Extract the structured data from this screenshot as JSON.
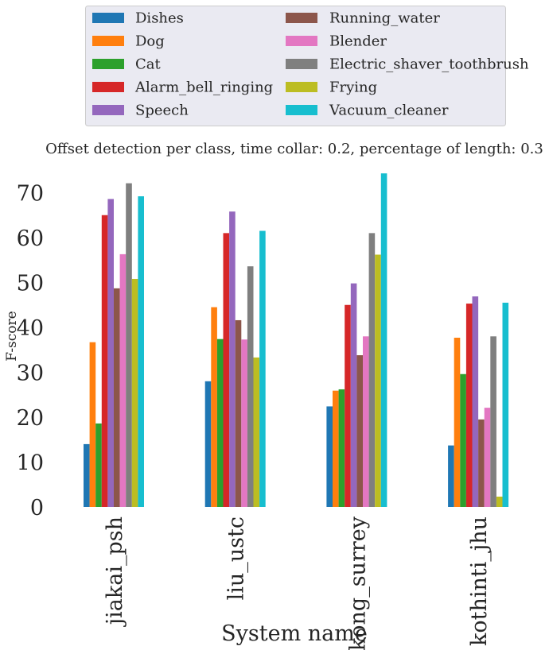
{
  "chart_data": {
    "type": "bar",
    "title": "Offset detection per class, time collar: 0.2, percentage of length: 0.3",
    "xlabel": "System name",
    "ylabel": "F-score",
    "ylim": [
      0,
      75
    ],
    "yticks": [
      0,
      10,
      20,
      30,
      40,
      50,
      60,
      70
    ],
    "categories": [
      "jiakai_psh",
      "liu_ustc",
      "kong_surrey",
      "kothinti_jhu"
    ],
    "legend_position": "top (above plot), two columns",
    "grid": false,
    "series": [
      {
        "name": "Dishes",
        "color": "#1f77b4",
        "values": [
          14.0,
          28.0,
          22.4,
          13.7
        ]
      },
      {
        "name": "Dog",
        "color": "#ff7f0e",
        "values": [
          36.7,
          44.5,
          25.9,
          37.7
        ]
      },
      {
        "name": "Cat",
        "color": "#2ca02c",
        "values": [
          18.6,
          37.4,
          26.2,
          29.6
        ]
      },
      {
        "name": "Alarm_bell_ringing",
        "color": "#d62728",
        "values": [
          65.0,
          61.0,
          45.0,
          45.3
        ]
      },
      {
        "name": "Speech",
        "color": "#9467bd",
        "values": [
          68.6,
          65.8,
          49.8,
          46.9
        ]
      },
      {
        "name": "Running_water",
        "color": "#8c564b",
        "values": [
          48.7,
          41.6,
          33.8,
          19.5
        ]
      },
      {
        "name": "Blender",
        "color": "#e377c2",
        "values": [
          56.3,
          37.3,
          38.0,
          22.1
        ]
      },
      {
        "name": "Electric_shaver_toothbrush",
        "color": "#7f7f7f",
        "values": [
          72.1,
          53.6,
          61.0,
          38.0
        ]
      },
      {
        "name": "Frying",
        "color": "#bcbd22",
        "values": [
          50.8,
          33.3,
          56.2,
          2.3
        ]
      },
      {
        "name": "Vacuum_cleaner",
        "color": "#17becf",
        "values": [
          69.2,
          61.5,
          74.3,
          45.5
        ]
      }
    ]
  }
}
